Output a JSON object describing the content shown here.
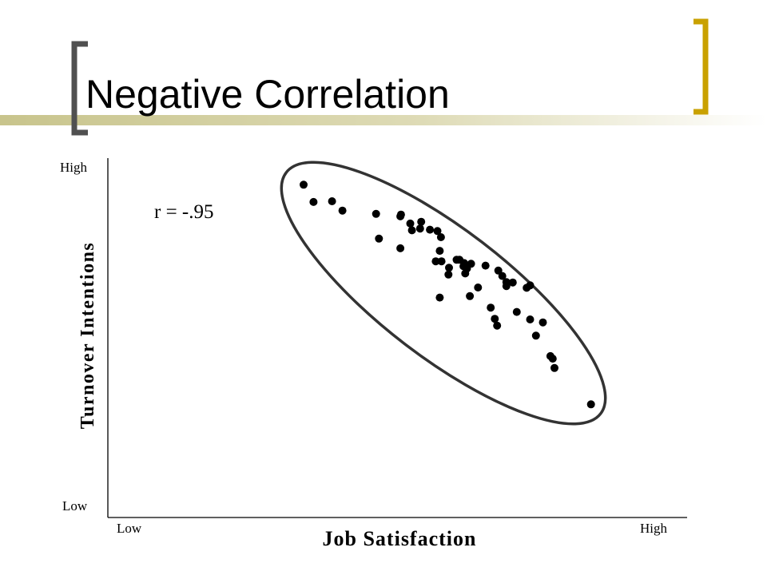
{
  "slide": {
    "title": "Negative Correlation",
    "accent_color": "#c9a100",
    "bar_color": "#c8c48c",
    "bracket_left_color": "#505050"
  },
  "chart_data": {
    "type": "scatter",
    "title": "Negative Correlation",
    "xlabel": "Job Satisfaction",
    "ylabel": "Turnover Intentions",
    "x_tick_labels": {
      "low": "Low",
      "high": "High"
    },
    "y_tick_labels": {
      "low": "Low",
      "high": "High"
    },
    "annotation": "r = -.95",
    "xlim": [
      0,
      100
    ],
    "ylim": [
      0,
      100
    ],
    "grid": false,
    "enclosing_ellipse": true,
    "point_color": "#000000",
    "points": [
      [
        33.8,
        92.6
      ],
      [
        35.5,
        87.8
      ],
      [
        38.7,
        88.0
      ],
      [
        40.5,
        85.4
      ],
      [
        46.3,
        84.5
      ],
      [
        46.8,
        77.6
      ],
      [
        50.5,
        83.8
      ],
      [
        50.6,
        84.3
      ],
      [
        50.5,
        74.9
      ],
      [
        52.2,
        81.8
      ],
      [
        52.5,
        79.9
      ],
      [
        53.9,
        80.4
      ],
      [
        54.1,
        82.3
      ],
      [
        55.6,
        80.1
      ],
      [
        56.9,
        79.7
      ],
      [
        57.5,
        78.0
      ],
      [
        57.3,
        74.2
      ],
      [
        56.6,
        71.3
      ],
      [
        57.6,
        71.3
      ],
      [
        58.9,
        69.5
      ],
      [
        58.8,
        67.6
      ],
      [
        60.2,
        71.7
      ],
      [
        60.7,
        71.7
      ],
      [
        61.5,
        70.8
      ],
      [
        61.4,
        69.9
      ],
      [
        62.0,
        69.3
      ],
      [
        61.7,
        67.9
      ],
      [
        62.7,
        70.6
      ],
      [
        63.9,
        64.0
      ],
      [
        62.5,
        61.6
      ],
      [
        57.3,
        61.2
      ],
      [
        65.2,
        70.1
      ],
      [
        67.4,
        68.7
      ],
      [
        68.1,
        67.2
      ],
      [
        66.1,
        58.4
      ],
      [
        68.8,
        64.4
      ],
      [
        69.9,
        65.4
      ],
      [
        72.9,
        64.6
      ],
      [
        72.3,
        63.9
      ],
      [
        72.9,
        55.1
      ],
      [
        70.6,
        57.2
      ],
      [
        68.8,
        65.5
      ],
      [
        67.2,
        53.4
      ],
      [
        66.8,
        55.3
      ],
      [
        75.1,
        54.3
      ],
      [
        73.9,
        50.6
      ],
      [
        76.8,
        44.2
      ],
      [
        76.4,
        44.9
      ],
      [
        77.1,
        41.6
      ],
      [
        83.4,
        31.5
      ]
    ]
  }
}
